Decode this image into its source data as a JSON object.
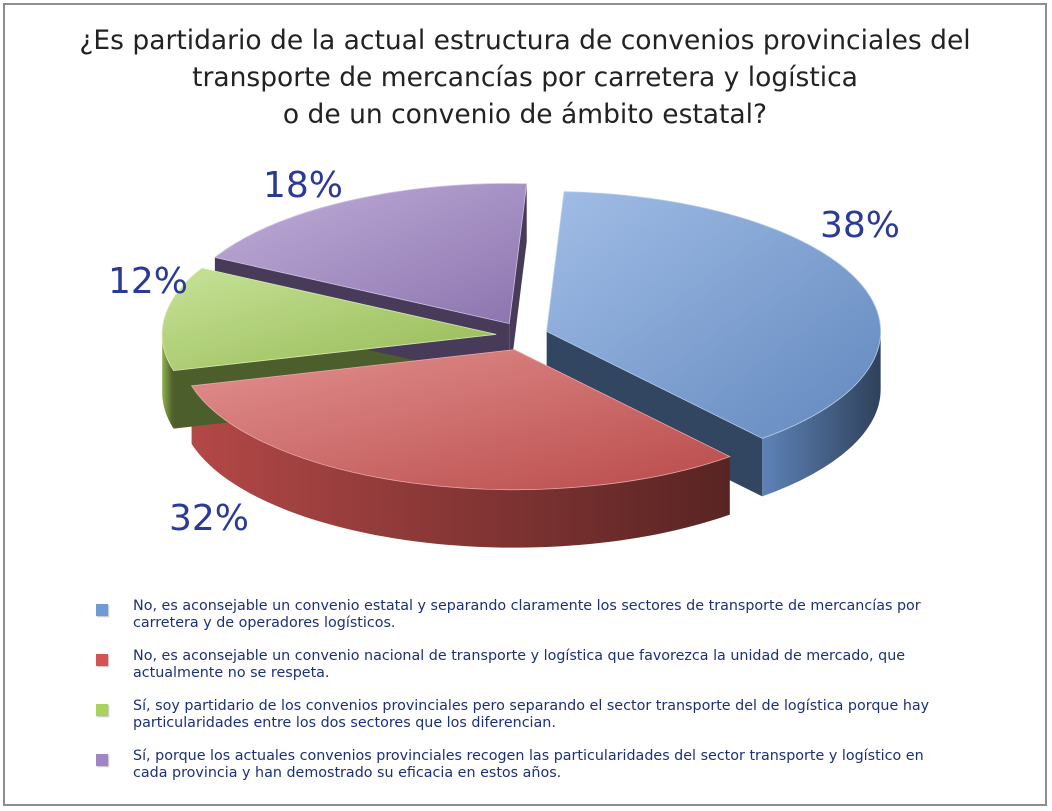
{
  "title_lines": [
    "¿Es partidario de la actual estructura de convenios provinciales del",
    "transporte de mercancías por carretera y logística",
    "o de un convenio de ámbito estatal?"
  ],
  "chart_data": {
    "type": "pie",
    "style": "3d-exploded",
    "title": "¿Es partidario de la actual estructura de convenios provinciales del transporte de mercancías por carretera y logística o de un convenio de ámbito estatal?",
    "label_color": "#2b3a95",
    "slices": [
      {
        "label": "No, es aconsejable un convenio estatal y separando claramente los sectores de transporte de mercancías por carretera y de operadores logísticos.",
        "value": 38,
        "display": "38%",
        "color": "#6f9ad8"
      },
      {
        "label": "No, es aconsejable un convenio nacional de transporte y logística que favorezca la unidad de mercado, que actualmente no se respeta.",
        "value": 32,
        "display": "32%",
        "color": "#d25554"
      },
      {
        "label": "Sí, soy partidario de los convenios provinciales pero separando el sector transporte del de logística porque hay particularidades entre los dos sectores que los diferencian.",
        "value": 12,
        "display": "12%",
        "color": "#a9d25f"
      },
      {
        "label": "Sí, porque los actuales convenios provinciales recogen las particularidades del sector transporte y logístico en cada provincia y han demostrado su eficacia en estos años.",
        "value": 18,
        "display": "18%",
        "color": "#9f84c6"
      }
    ],
    "legend_position": "bottom"
  }
}
